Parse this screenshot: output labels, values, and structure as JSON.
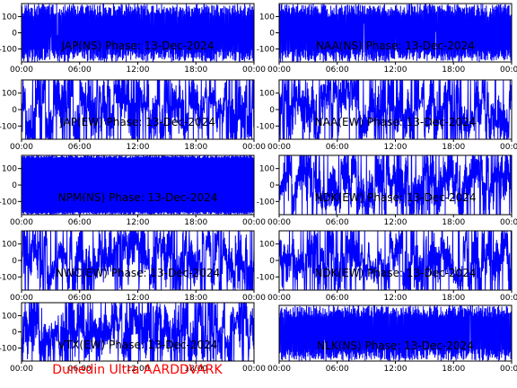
{
  "credit": "Dunedin Ultra AARDDVARK",
  "colors": {
    "trace": "#0000ff",
    "axes": "#000000",
    "credit": "#ff0000",
    "background": "#ffffff"
  },
  "chart_data": [
    {
      "type": "line",
      "title": "JAP(NS) Phase: 13-Dec-2024",
      "ylim": [
        -180,
        180
      ],
      "yticks": [
        100,
        0,
        -100
      ],
      "xticks": [
        "00:00",
        "06:00",
        "12:00",
        "18:00",
        "00:00"
      ],
      "xlim_hours": [
        0,
        24
      ],
      "series": [
        {
          "pattern": "dense",
          "amplitude": 180
        }
      ]
    },
    {
      "type": "line",
      "title": "NAA(NS) Phase: 13-Dec-2024",
      "ylim": [
        -180,
        180
      ],
      "yticks": [
        100,
        0,
        -100
      ],
      "xticks": [
        "00:00",
        "06:00",
        "12:00",
        "18:00",
        "00:00"
      ],
      "xlim_hours": [
        0,
        24
      ],
      "series": [
        {
          "pattern": "dense",
          "amplitude": 180
        }
      ]
    },
    {
      "type": "line",
      "title": "JAP(EW) Phase: 13-Dec-2024",
      "ylim": [
        -180,
        180
      ],
      "yticks": [
        100,
        0,
        -100
      ],
      "xticks": [
        "00:00",
        "06:00",
        "12:00",
        "18:00",
        "00:00"
      ],
      "xlim_hours": [
        0,
        24
      ],
      "series": [
        {
          "pattern": "oscillating",
          "amplitude": 180
        }
      ]
    },
    {
      "type": "line",
      "title": "NAA(EW) Phase: 13-Dec-2024",
      "ylim": [
        -180,
        180
      ],
      "yticks": [
        100,
        0,
        -100
      ],
      "xticks": [
        "00:00",
        "06:00",
        "12:00",
        "18:00",
        "00:00"
      ],
      "xlim_hours": [
        0,
        24
      ],
      "series": [
        {
          "pattern": "oscillating",
          "amplitude": 180
        }
      ]
    },
    {
      "type": "line",
      "title": "NPM(NS) Phase: 13-Dec-2024",
      "ylim": [
        -180,
        180
      ],
      "yticks": [
        100,
        0,
        -100
      ],
      "xticks": [
        "00:00",
        "06:00",
        "12:00",
        "18:00",
        "00:00"
      ],
      "xlim_hours": [
        0,
        24
      ],
      "series": [
        {
          "pattern": "solid",
          "amplitude": 180
        }
      ]
    },
    {
      "type": "line",
      "title": "NDK(EW) Phase: 13-Dec-2024",
      "ylim": [
        -180,
        180
      ],
      "yticks": [
        100,
        0,
        -100
      ],
      "xticks": [
        "00:00",
        "06:00",
        "12:00",
        "18:00",
        "00:00"
      ],
      "xlim_hours": [
        0,
        24
      ],
      "series": [
        {
          "pattern": "oscillating",
          "amplitude": 180
        }
      ]
    },
    {
      "type": "line",
      "title": "NWC(EW) Phase: 13-Dec-2024",
      "ylim": [
        -180,
        180
      ],
      "yticks": [
        100,
        0,
        -100
      ],
      "xticks": [
        "00:00",
        "06:00",
        "12:00",
        "18:00",
        "00:00"
      ],
      "xlim_hours": [
        0,
        24
      ],
      "series": [
        {
          "pattern": "oscillating",
          "amplitude": 180
        }
      ]
    },
    {
      "type": "line",
      "title": "NDK(EW) Phase: 13-Dec-2024",
      "ylim": [
        -180,
        180
      ],
      "yticks": [
        100,
        0,
        -100
      ],
      "xticks": [
        "00:00",
        "06:00",
        "12:00",
        "18:00",
        "00:00"
      ],
      "xlim_hours": [
        0,
        24
      ],
      "series": [
        {
          "pattern": "oscillating",
          "amplitude": 180
        }
      ]
    },
    {
      "type": "line",
      "title": "VTX(EW) Phase: 13-Dec-2024",
      "ylim": [
        -180,
        180
      ],
      "yticks": [
        100,
        0,
        -100
      ],
      "xticks": [
        "00:00",
        "06:00",
        "12:00",
        "18:00",
        "00:00"
      ],
      "xlim_hours": [
        0,
        24
      ],
      "series": [
        {
          "pattern": "oscillating",
          "amplitude": 180
        }
      ]
    },
    {
      "type": "line",
      "title": "NLK(NS) Phase: 13-Dec-2024",
      "ylim": [
        -180,
        180
      ],
      "yticks": [],
      "xticks": [
        "00:00",
        "06:00",
        "12:00",
        "18:00",
        "00:00"
      ],
      "xlim_hours": [
        0,
        24
      ],
      "series": [
        {
          "pattern": "dense",
          "amplitude": 180
        }
      ]
    }
  ]
}
